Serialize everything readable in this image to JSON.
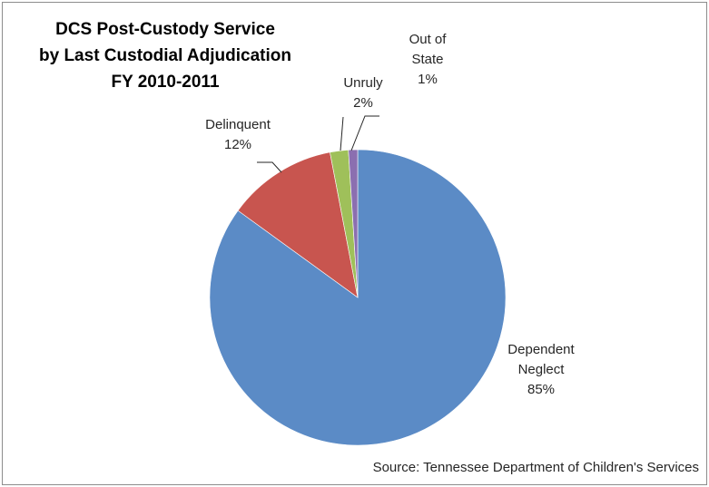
{
  "chart_data": {
    "type": "pie",
    "title_lines": [
      "DCS Post-Custody Service",
      "by Last Custodial Adjudication",
      "FY 2010-2011"
    ],
    "slices": [
      {
        "name": "Dependent Neglect",
        "label_lines": [
          "Dependent",
          "Neglect"
        ],
        "pct_label": "85%",
        "value": 85,
        "color": "#5b8bc6"
      },
      {
        "name": "Delinquent",
        "label_lines": [
          "Delinquent"
        ],
        "pct_label": "12%",
        "value": 12,
        "color": "#c8554f"
      },
      {
        "name": "Unruly",
        "label_lines": [
          "Unruly"
        ],
        "pct_label": "2%",
        "value": 2,
        "color": "#9fc05a"
      },
      {
        "name": "Out of State",
        "label_lines": [
          "Out of",
          "State"
        ],
        "pct_label": "1%",
        "value": 1,
        "color": "#8b6fb0"
      }
    ],
    "legend": "none",
    "source": "Source: Tennessee  Department of Children's Services"
  }
}
